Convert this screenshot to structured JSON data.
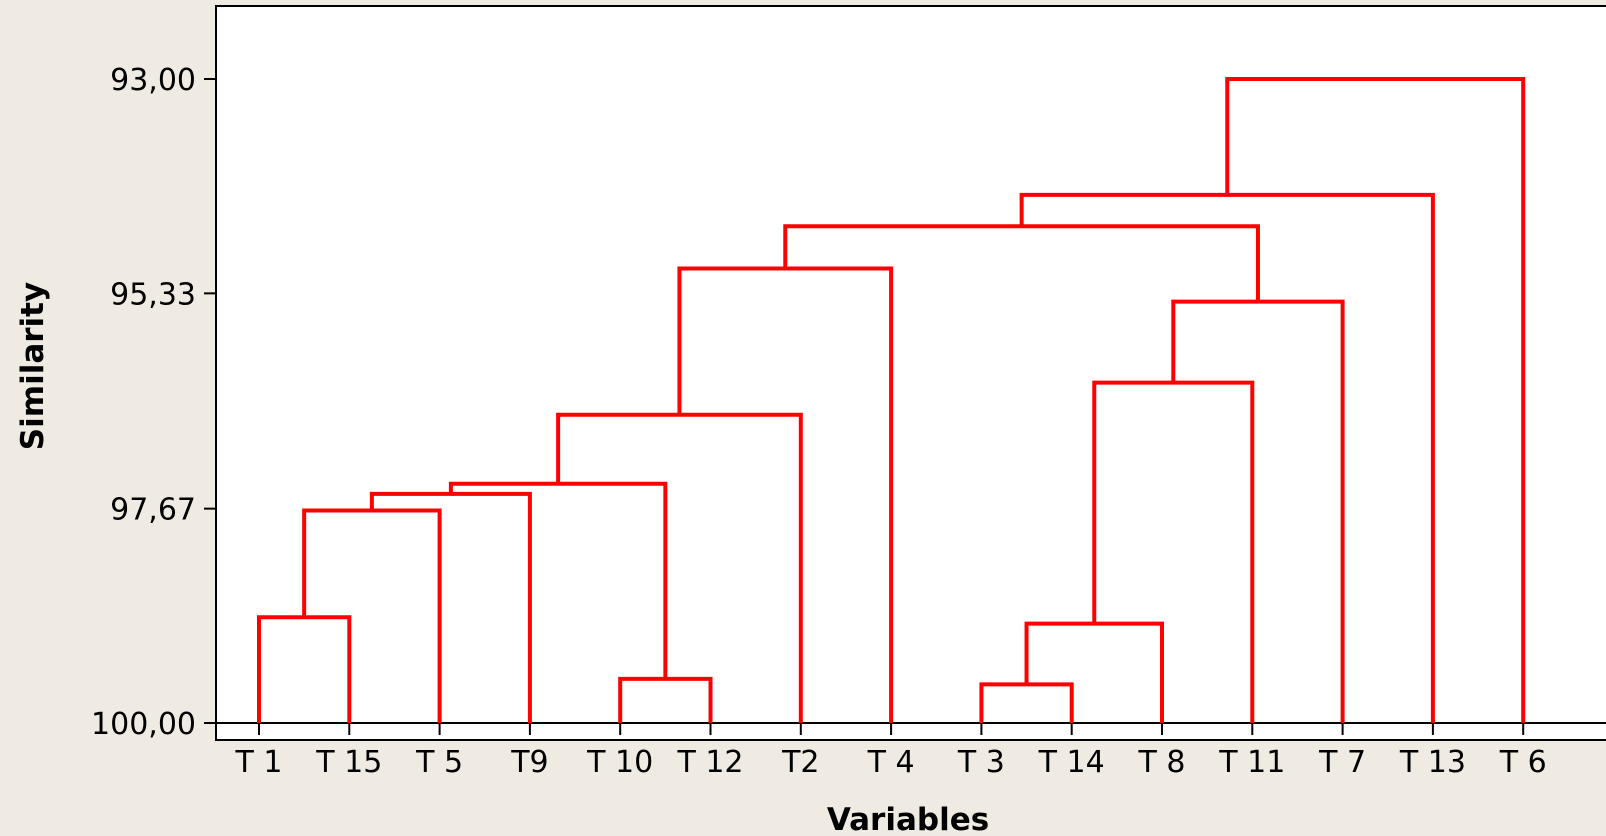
{
  "chart_data": {
    "type": "dendrogram",
    "title": "",
    "xlabel": "Variables",
    "ylabel": "Similarity",
    "y_ticks": [
      "93,00",
      "95,33",
      "97,67",
      "100,00"
    ],
    "y_tick_values": [
      93.0,
      95.33,
      97.67,
      100.0
    ],
    "ylim": [
      100.0,
      93.0
    ],
    "line_color": "#ff0000",
    "leaves": [
      "T 1",
      "T 15",
      "T 5",
      "T9",
      "T 10",
      "T 12",
      "T2",
      "T 4",
      "T 3",
      "T 14",
      "T 8",
      "T 11",
      "T 7",
      "T 13",
      "T 6"
    ],
    "merges": [
      {
        "left": "T 3",
        "right": "T 14",
        "similarity": 99.58
      },
      {
        "left": "T 10",
        "right": "T 12",
        "similarity": 99.52
      },
      {
        "left": "T 1",
        "right": "T 15",
        "similarity": 98.85
      },
      {
        "left": "cluster(T 3, T 14)",
        "right": "T 8",
        "similarity": 98.92
      },
      {
        "left": "cluster(T 1, T 15)",
        "right": "T 5",
        "similarity": 97.69
      },
      {
        "left": "cluster(T 1, T 15, T 5)",
        "right": "T9",
        "similarity": 97.51
      },
      {
        "left": "cluster(T 1, T 15, T 5, T9)",
        "right": "cluster(T 10, T 12)",
        "similarity": 97.4
      },
      {
        "left": "cluster(T 1 ... T 12)",
        "right": "T2",
        "similarity": 96.65
      },
      {
        "left": "cluster(T 3, T 14, T 8)",
        "right": "T 11",
        "similarity": 96.3
      },
      {
        "left": "cluster(T 3, T 14, T 8, T 11)",
        "right": "T 7",
        "similarity": 95.42
      },
      {
        "left": "cluster(T 1 ... T2)",
        "right": "T 4",
        "similarity": 95.06
      },
      {
        "left": "cluster(T 1 ... T 4)",
        "right": "cluster(T 3 ... T 7)",
        "similarity": 94.6
      },
      {
        "left": "cluster(T 1 ... T 7)",
        "right": "T 13",
        "similarity": 94.26
      },
      {
        "left": "cluster(T 1 ... T 13)",
        "right": "T 6",
        "similarity": 93.0
      }
    ]
  }
}
